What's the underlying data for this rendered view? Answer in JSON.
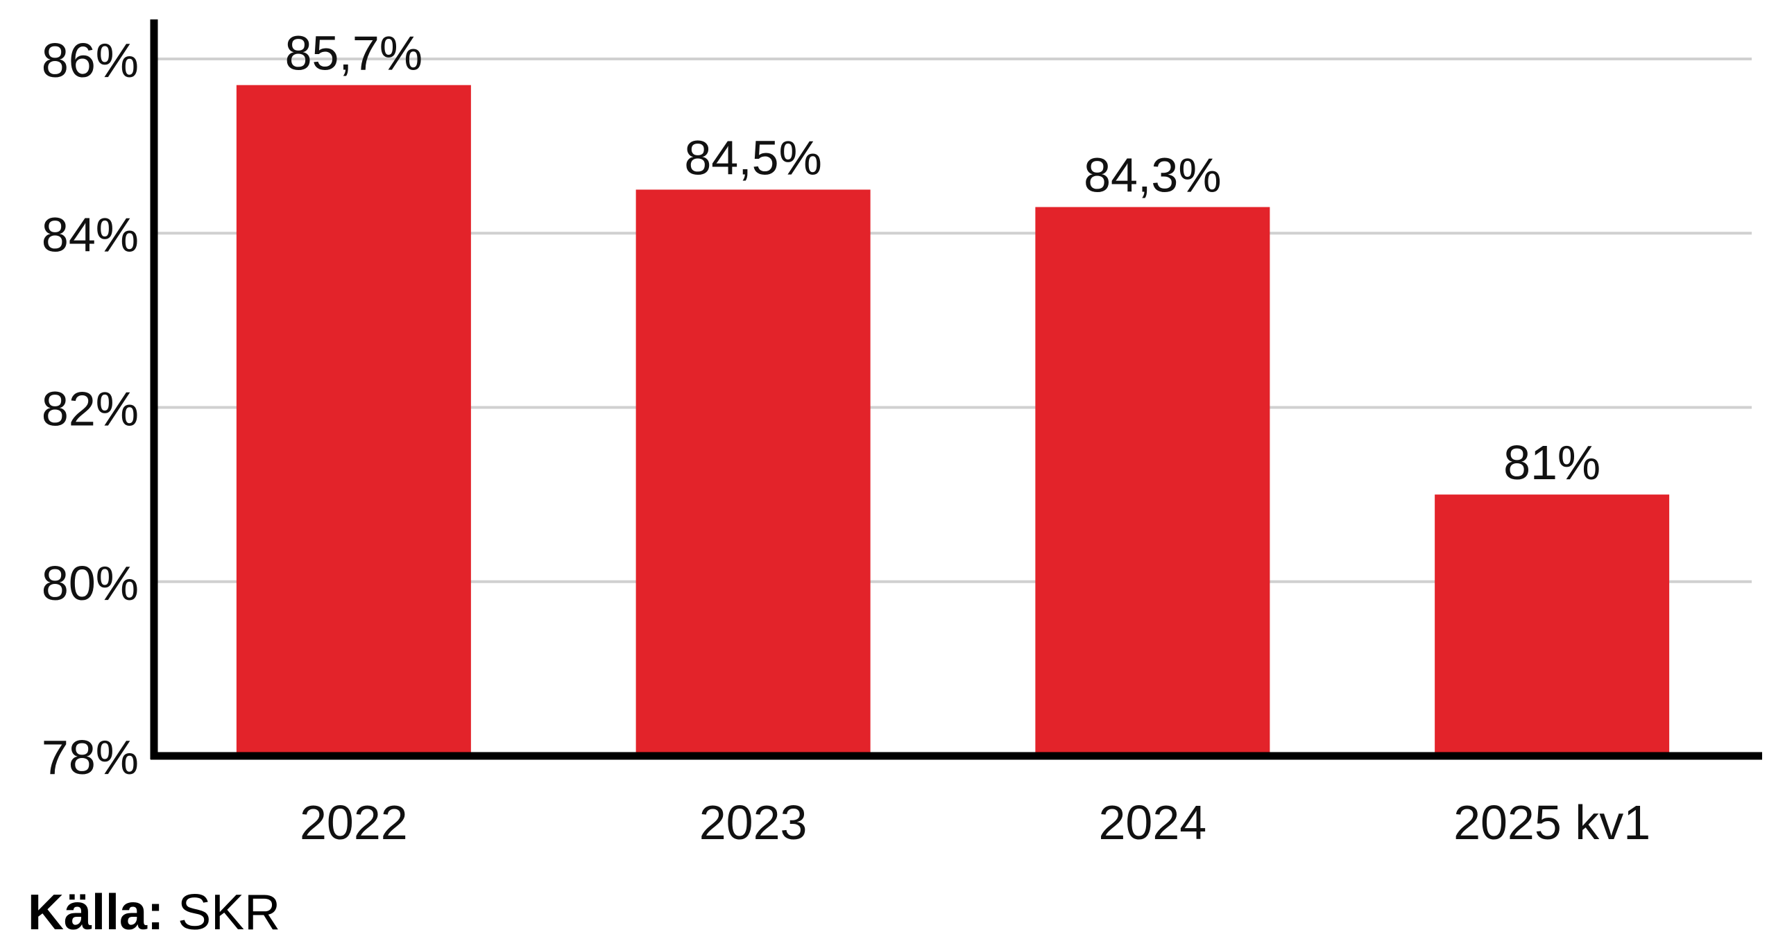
{
  "chart_data": {
    "type": "bar",
    "categories": [
      "2022",
      "2023",
      "2024",
      "2025 kv1"
    ],
    "values": [
      85.7,
      84.5,
      84.3,
      81
    ],
    "data_labels": [
      "85,7%",
      "84,5%",
      "84,3%",
      "81%"
    ],
    "ylim": [
      78,
      86
    ],
    "yticks": [
      78,
      80,
      82,
      84,
      86
    ],
    "ytick_labels": [
      "78%",
      "80%",
      "82%",
      "84%",
      "86%"
    ],
    "grid": true,
    "bar_color": "#e3232a",
    "gridline_color": "#d0d0d0",
    "axis_color": "#000000"
  },
  "source": {
    "label": "Källa:",
    "text": "SKR"
  }
}
